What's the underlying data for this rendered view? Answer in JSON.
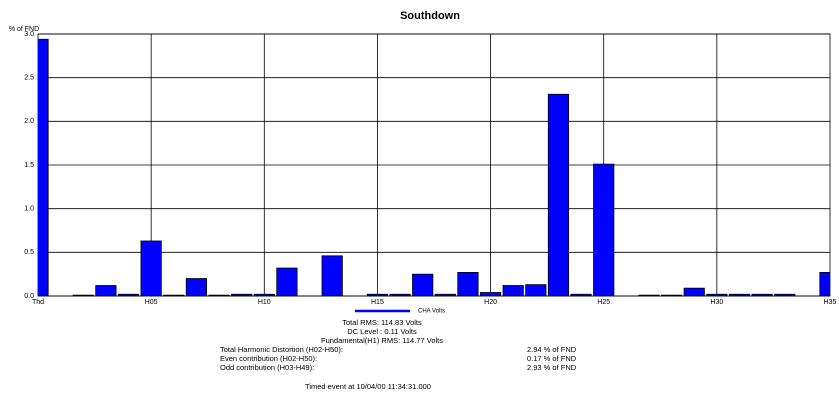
{
  "chart_data": {
    "type": "bar",
    "title": "Southdown",
    "y_label": "% of FND",
    "categories": [
      "Thd",
      null,
      null,
      null,
      null,
      "H05",
      null,
      null,
      null,
      null,
      "H10",
      null,
      null,
      null,
      null,
      "H15",
      null,
      null,
      null,
      null,
      "H20",
      null,
      null,
      null,
      null,
      "H25",
      null,
      null,
      null,
      null,
      "H30",
      null,
      null,
      null,
      null,
      "H35"
    ],
    "series": [
      {
        "name": "CHA Volts",
        "color": "#0000ff",
        "values": [
          2.94,
          0,
          0.01,
          0.12,
          0.02,
          0.63,
          0.01,
          0.2,
          0.01,
          0.02,
          0.02,
          0.32,
          0,
          0.46,
          0,
          0.02,
          0.02,
          0.25,
          0.02,
          0.27,
          0.04,
          0.12,
          0.13,
          2.31,
          0.02,
          1.51,
          0,
          0.01,
          0.01,
          0.09,
          0.02,
          0.02,
          0.02,
          0.02,
          0,
          0.27
        ]
      }
    ],
    "ylim": [
      0,
      3
    ],
    "yticks": [
      {
        "value": 0,
        "label": "0.0"
      },
      0.5,
      {
        "value": 1,
        "label": "1.0"
      },
      1.5,
      {
        "value": 2,
        "label": "2.0"
      },
      2.5,
      {
        "value": 3,
        "label": "3.0"
      }
    ],
    "grid": true
  },
  "summary": {
    "total_rms": "Total RMS: 114.83 Volts",
    "dc_level": "DC Level : 0.11 Volts",
    "fundamental": "Fundamental(H1) RMS: 114.77 Volts",
    "rows": [
      [
        "Total Harmonic Distortion (H02-H50):",
        "2.94 % of FND"
      ],
      [
        "Even contribution (H02-H50):",
        "0.17 % of FND"
      ],
      [
        "Odd contribution (H03-H49):",
        "2.93 % of FND"
      ]
    ],
    "event": "Timed event at 10/04/00 11:34:31.000"
  }
}
